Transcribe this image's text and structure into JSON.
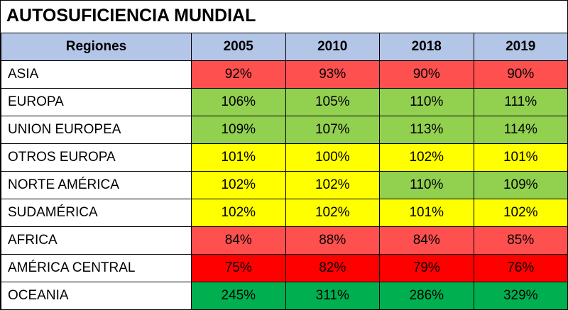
{
  "chart_data": {
    "type": "table",
    "title": "AUTOSUFICIENCIA MUNDIAL",
    "columns": [
      "Regiones",
      "2005",
      "2010",
      "2018",
      "2019"
    ],
    "rows": [
      {
        "region": "ASIA",
        "values": [
          "92%",
          "93%",
          "90%",
          "90%"
        ],
        "colors": [
          "#ff5050",
          "#ff5050",
          "#ff5050",
          "#ff5050"
        ]
      },
      {
        "region": "EUROPA",
        "values": [
          "106%",
          "105%",
          "110%",
          "111%"
        ],
        "colors": [
          "#92d050",
          "#92d050",
          "#92d050",
          "#92d050"
        ]
      },
      {
        "region": "UNION EUROPEA",
        "values": [
          "109%",
          "107%",
          "113%",
          "114%"
        ],
        "colors": [
          "#92d050",
          "#92d050",
          "#92d050",
          "#92d050"
        ]
      },
      {
        "region": "OTROS EUROPA",
        "values": [
          "101%",
          "100%",
          "102%",
          "101%"
        ],
        "colors": [
          "#ffff00",
          "#ffff00",
          "#ffff00",
          "#ffff00"
        ]
      },
      {
        "region": "NORTE AMÉRICA",
        "values": [
          "102%",
          "102%",
          "110%",
          "109%"
        ],
        "colors": [
          "#ffff00",
          "#ffff00",
          "#92d050",
          "#92d050"
        ]
      },
      {
        "region": "SUDAMÉRICA",
        "values": [
          "102%",
          "102%",
          "101%",
          "102%"
        ],
        "colors": [
          "#ffff00",
          "#ffff00",
          "#ffff00",
          "#ffff00"
        ]
      },
      {
        "region": "AFRICA",
        "values": [
          "84%",
          "88%",
          "84%",
          "85%"
        ],
        "colors": [
          "#ff5050",
          "#ff5050",
          "#ff5050",
          "#ff5050"
        ]
      },
      {
        "region": "AMÉRICA CENTRAL",
        "values": [
          "75%",
          "82%",
          "79%",
          "76%"
        ],
        "colors": [
          "#ff0000",
          "#ff0000",
          "#ff0000",
          "#ff0000"
        ]
      },
      {
        "region": "OCEANIA",
        "values": [
          "245%",
          "311%",
          "286%",
          "329%"
        ],
        "colors": [
          "#00b050",
          "#00b050",
          "#00b050",
          "#00b050"
        ]
      }
    ]
  }
}
